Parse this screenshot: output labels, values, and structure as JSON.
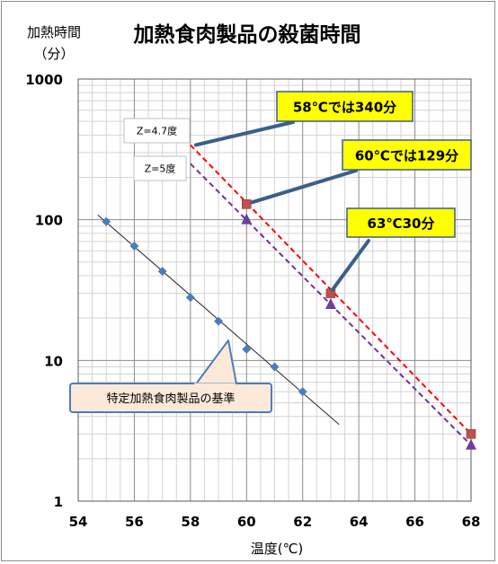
{
  "chart_data": {
    "type": "scatter",
    "title": "加熱食肉製品の殺菌時間",
    "ylabel_line1": "加熱時間",
    "ylabel_line2": "（分）",
    "xlabel": "温度(℃)",
    "x_scale": "linear",
    "y_scale": "log",
    "xlim": [
      54,
      68
    ],
    "ylim": [
      1,
      1000
    ],
    "x_ticks": [
      54,
      56,
      58,
      60,
      62,
      64,
      66,
      68
    ],
    "y_ticks": [
      1,
      10,
      100,
      1000
    ],
    "grid": true,
    "series": [
      {
        "name": "特定加熱食肉製品の基準",
        "marker": "diamond",
        "color": "#4a7ebb",
        "x": [
          55,
          56,
          57,
          58,
          59,
          60,
          61,
          62
        ],
        "y": [
          97,
          65,
          43,
          28,
          19,
          12,
          9,
          6
        ],
        "trendline": {
          "x": [
            54.7,
            63.3
          ],
          "y": [
            108,
            3.5
          ],
          "color": "#262626",
          "dash": "solid"
        }
      },
      {
        "name": "z=4.7度",
        "marker": "square",
        "color": "#c0504d",
        "x": [
          60,
          63,
          68
        ],
        "y": [
          129,
          30,
          3
        ],
        "trendline": {
          "x": [
            58,
            68
          ],
          "y": [
            340,
            3
          ],
          "color": "#ff0000",
          "dash": "dashed"
        }
      },
      {
        "name": "z=5度",
        "marker": "triangle",
        "color": "#6b3fa0",
        "x": [
          60,
          63,
          68
        ],
        "y": [
          100,
          25,
          2.5
        ],
        "trendline": {
          "x": [
            58,
            68
          ],
          "y": [
            250,
            2.5
          ],
          "color": "#7030a0",
          "dash": "dashed"
        }
      }
    ],
    "annotations": {
      "callout_58": {
        "text": "58℃では340分",
        "x": 58,
        "y": 340
      },
      "callout_60": {
        "text": "60℃では129分",
        "x": 60,
        "y": 129
      },
      "callout_63": {
        "text": "63℃30分",
        "x": 63,
        "y": 30
      },
      "label_z47": {
        "text": "Z=4.7度",
        "x": 58,
        "y": 340
      },
      "label_z5": {
        "text": "Z=5度",
        "x": 58,
        "y": 250
      },
      "label_standard": {
        "text": "特定加熱食肉製品の基準",
        "x": 59.3,
        "y": 14
      }
    },
    "colors": {
      "callout_fill": "#ffff00",
      "callout_border": "#3a5f8a",
      "callout_pointer": "#3a5f8a",
      "label_box_fill": "#ffffff",
      "standard_fill": "#fde9d9",
      "standard_border": "#4a7ebb"
    }
  }
}
